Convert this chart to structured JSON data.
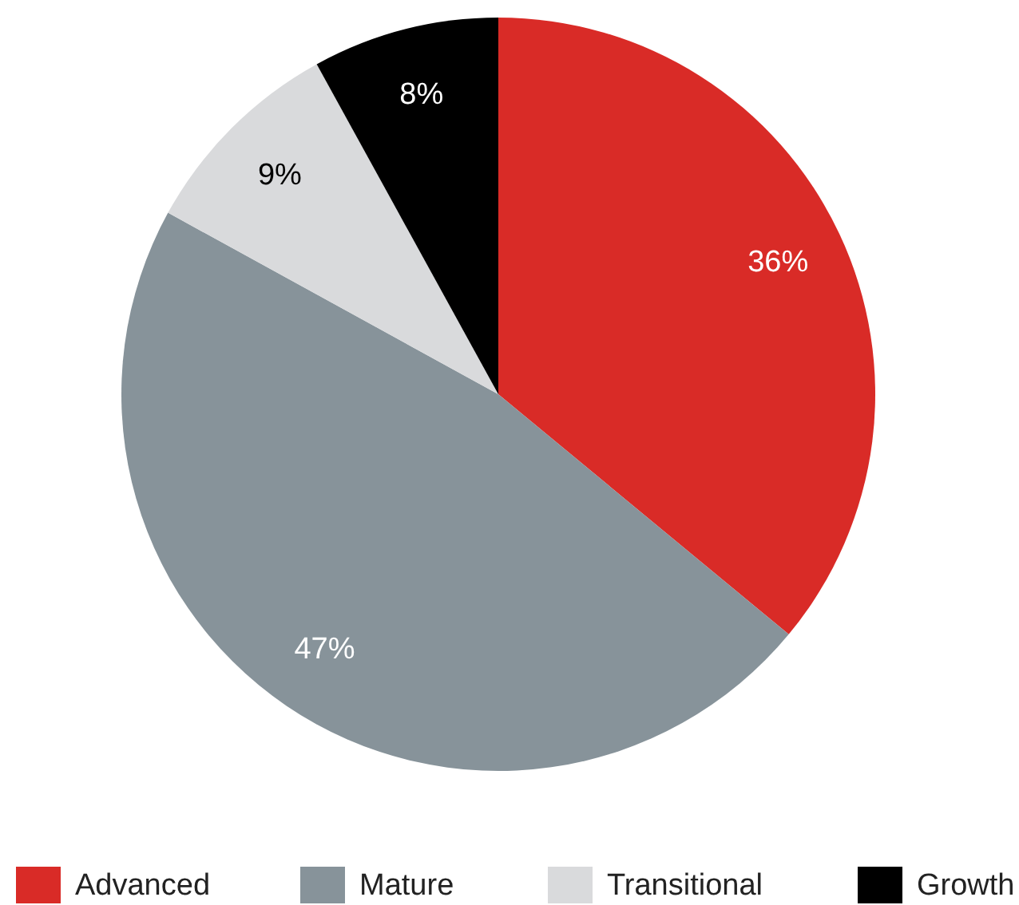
{
  "chart_data": {
    "type": "pie",
    "categories": [
      "Advanced",
      "Mature",
      "Transitional",
      "Growth"
    ],
    "values": [
      36,
      47,
      9,
      8
    ],
    "colors": [
      "#d92b27",
      "#87939a",
      "#d9dadc",
      "#000000"
    ],
    "value_labels": [
      "36%",
      "47%",
      "9%",
      "8%"
    ],
    "legend": "bottom"
  }
}
